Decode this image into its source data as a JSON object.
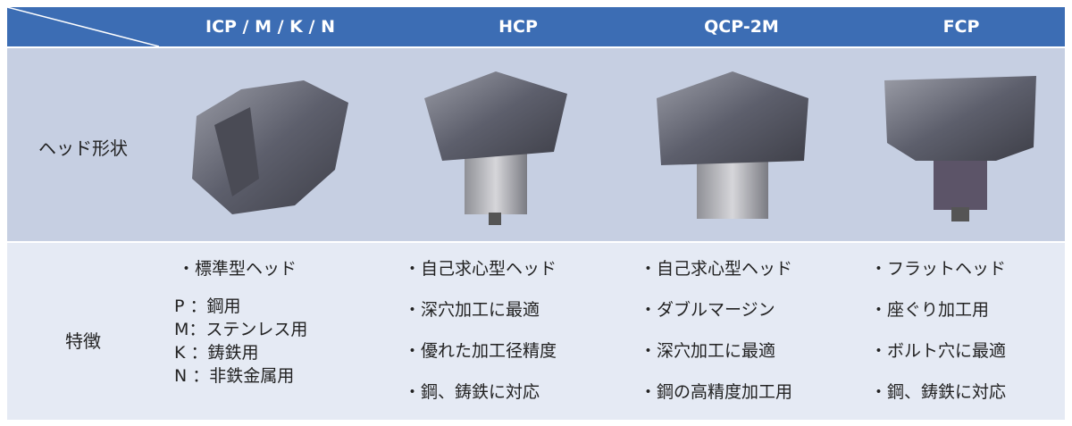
{
  "header": {
    "columns": [
      "ICP / M / K / N",
      "HCP",
      "QCP-2M",
      "FCP"
    ]
  },
  "rows": [
    {
      "label": "ヘッド形状"
    },
    {
      "label": "特徴"
    }
  ],
  "features": [
    [
      "・標準型ヘッド",
      "P ：鋼用",
      "M：ステンレス用",
      "K ：鋳鉄用",
      "N ：非鉄金属用"
    ],
    [
      "・自己求心型ヘッド",
      "・深穴加工に最適",
      "・優れた加工径精度",
      "・鋼、鋳鉄に対応"
    ],
    [
      "・自己求心型ヘッド",
      "・ダブルマージン",
      "・深穴加工に最適",
      "・鋼の高精度加工用"
    ],
    [
      "・フラットヘッド",
      "・座ぐり加工用",
      "・ボルト穴に最適",
      "・鋼、鋳鉄に対応"
    ]
  ]
}
